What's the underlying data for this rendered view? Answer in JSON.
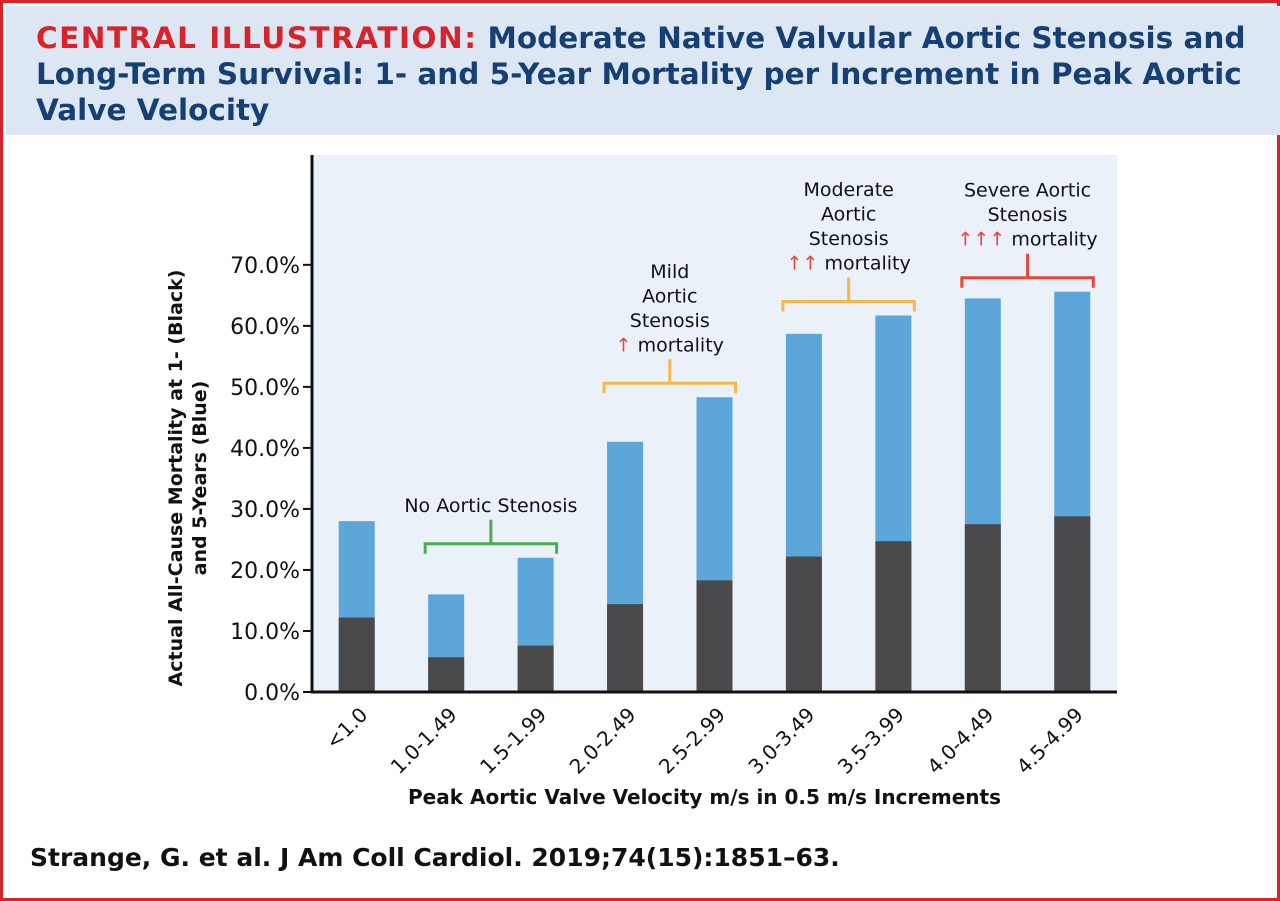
{
  "header": {
    "label": "CENTRAL ILLUSTRATION:",
    "title": "Moderate Native Valvular Aortic Stenosis and Long-Term Survival: 1- and 5-Year Mortality per Increment in Peak Aortic Valve Velocity"
  },
  "citation": "Strange, G. et al. J Am Coll Cardiol. 2019;74(15):1851–63.",
  "colors": {
    "one_year": "#4a4a4c",
    "five_year": "#5da6da",
    "plot_bg": "#eaf1f9",
    "no_as": "#4aaa55",
    "mild": "#f7b84a",
    "moderate": "#f7b84a",
    "severe": "#e8453c",
    "arrow": "#e8453c"
  },
  "chart_data": {
    "type": "bar",
    "stacked": "overlay",
    "categories": [
      "<1.0",
      "1.0-1.49",
      "1.5-1.99",
      "2.0-2.49",
      "2.5-2.99",
      "3.0-3.49",
      "3.5-3.99",
      "4.0-4.49",
      "4.5-4.99"
    ],
    "series": [
      {
        "key": "five_year",
        "values": [
          28.0,
          16.0,
          22.0,
          41.0,
          48.3,
          58.7,
          61.7,
          64.5,
          65.6
        ]
      },
      {
        "key": "one_year",
        "values": [
          12.2,
          5.7,
          7.6,
          14.4,
          18.3,
          22.2,
          24.7,
          27.5,
          28.8
        ]
      }
    ],
    "xlabel": "Peak Aortic Valve Velocity m/s in 0.5 m/s Increments",
    "ylabel_line1": "Actual All-Cause Mortality at 1- (Black)",
    "ylabel_line2": "and 5-Years (Blue)",
    "ylim": [
      0,
      88
    ],
    "yticks": [
      0,
      10,
      20,
      30,
      40,
      50,
      60,
      70
    ],
    "ytick_labels": [
      "0.0%",
      "10.0%",
      "20.0%",
      "30.0%",
      "40.0%",
      "50.0%",
      "60.0%",
      "70.0%"
    ],
    "groups": [
      {
        "key": "no_as",
        "from": 1,
        "to": 2,
        "lines": [
          "No Aortic Stenosis"
        ],
        "arrows": "",
        "tail": ""
      },
      {
        "key": "mild",
        "from": 3,
        "to": 4,
        "lines": [
          "Mild",
          "Aortic",
          "Stenosis"
        ],
        "arrows": "↑",
        "tail": "mortality"
      },
      {
        "key": "moderate",
        "from": 5,
        "to": 6,
        "lines": [
          "Moderate",
          "Aortic",
          "Stenosis"
        ],
        "arrows": "↑↑",
        "tail": "mortality"
      },
      {
        "key": "severe",
        "from": 7,
        "to": 8,
        "lines": [
          "Severe Aortic",
          "Stenosis"
        ],
        "arrows": "↑↑↑",
        "tail": "mortality"
      }
    ]
  }
}
